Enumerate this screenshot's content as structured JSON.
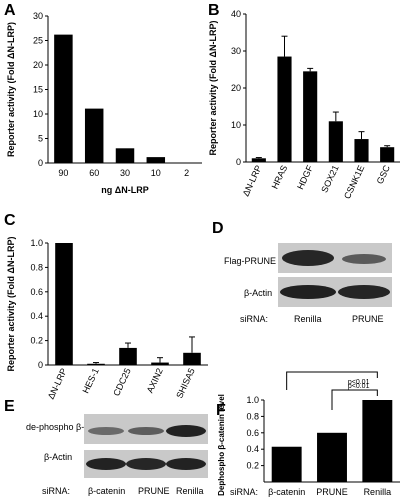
{
  "panels": {
    "A": "A",
    "B": "B",
    "C": "C",
    "D": "D",
    "E": "E",
    "F": "F"
  },
  "colors": {
    "bar": "#000000",
    "axis": "#000000",
    "blot_bg": "#cfcfcf"
  },
  "chart_data": [
    {
      "panel": "A",
      "type": "bar",
      "ylabel": "Reporter activity (Fold ΔN-LRP)",
      "xlabel": "ng ΔN-LRP",
      "categories": [
        "90",
        "60",
        "30",
        "10",
        "2"
      ],
      "values": [
        26.2,
        11.1,
        3.0,
        1.2,
        0.1
      ],
      "ylim": [
        0,
        30
      ],
      "yticks": [
        "0",
        "5",
        "10",
        "15",
        "20",
        "25",
        "30"
      ],
      "grid": false
    },
    {
      "panel": "B",
      "type": "bar",
      "ylabel": "Reporter activity (Fold ΔN-LRP)",
      "categories": [
        "ΔN-LRP",
        "HRAS",
        "HDGF",
        "SOX21",
        "CSNK1E",
        "GSC"
      ],
      "values": [
        1.0,
        28.5,
        24.5,
        11.0,
        6.2,
        4.0
      ],
      "errors": [
        0.2,
        5.5,
        0.8,
        2.5,
        2.0,
        0.4
      ],
      "ylim": [
        0,
        40
      ],
      "yticks": [
        "0",
        "10",
        "20",
        "30",
        "40"
      ],
      "grid": false
    },
    {
      "panel": "C",
      "type": "bar",
      "ylabel": "Reporter activity (Fold ΔN-LRP)",
      "categories": [
        "ΔN-LRP",
        "HES-1",
        "CDC25",
        "AXIN2",
        "SHISA5"
      ],
      "values": [
        1.0,
        0.01,
        0.14,
        0.02,
        0.1
      ],
      "errors": [
        0.0,
        0.01,
        0.04,
        0.04,
        0.13
      ],
      "ylim": [
        0,
        1.0
      ],
      "yticks": [
        "0",
        "0.2",
        "0.4",
        "0.6",
        "0.8",
        "1.0"
      ],
      "grid": false
    },
    {
      "panel": "F",
      "type": "bar",
      "ylabel": "Dephospho β-catenin level",
      "categories": [
        "β-catenin",
        "PRUNE",
        "Renilla"
      ],
      "values": [
        0.43,
        0.6,
        1.0
      ],
      "ylim": [
        0,
        1.0
      ],
      "yticks": [
        "0.2",
        "0.4",
        "0.6",
        "0.8",
        "1.0"
      ],
      "xaxis_prefix": "siRNA:",
      "annotations": [
        "p<0.01",
        "p<0.01"
      ],
      "grid": false
    }
  ],
  "blots": {
    "D": {
      "rows": [
        "Flag-PRUNE",
        "β-Actin"
      ],
      "sirna_prefix": "siRNA:",
      "lanes": [
        "Renilla",
        "PRUNE"
      ]
    },
    "E": {
      "rows": [
        "de-phospho β-catenin",
        "β-Actin"
      ],
      "sirna_prefix": "siRNA:",
      "lanes": [
        "β-catenin",
        "PRUNE",
        "Renilla"
      ]
    }
  }
}
